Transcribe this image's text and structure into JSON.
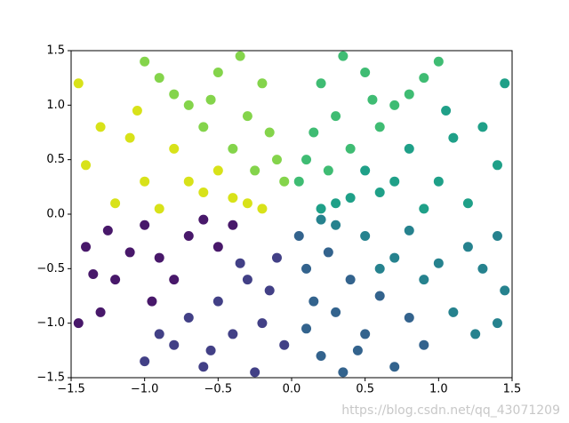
{
  "chart_data": {
    "type": "scatter",
    "xlim": [
      -1.5,
      1.5
    ],
    "ylim": [
      -1.5,
      1.5
    ],
    "xticks": [
      {
        "value": -1.5,
        "label": "−1.5"
      },
      {
        "value": -1.0,
        "label": "−1.0"
      },
      {
        "value": -0.5,
        "label": "−0.5"
      },
      {
        "value": 0,
        "label": "0.0"
      },
      0.5,
      {
        "value": 1.0,
        "label": "1.0"
      },
      1.5
    ],
    "yticks": [
      {
        "value": -1.5,
        "label": "−1.5"
      },
      {
        "value": -1.0,
        "label": "−1.0"
      },
      {
        "value": -0.5,
        "label": "−0.5"
      },
      {
        "value": 0,
        "label": "0.0"
      },
      0.5,
      {
        "value": 1.0,
        "label": "1.0"
      },
      1.5
    ],
    "series": [
      {
        "color": "#48186a",
        "x": [
          -1.4,
          -1.2,
          -1.0,
          -0.9,
          -1.3,
          -0.7,
          -1.45,
          -0.8,
          -1.1,
          -0.6,
          -1.25,
          -0.5,
          -1.35,
          -0.95,
          -0.4
        ],
        "values": [
          -0.3,
          -0.6,
          -0.1,
          -0.4,
          -0.9,
          -0.2,
          -1.0,
          -0.6,
          -0.35,
          -0.05,
          -0.15,
          -0.3,
          -0.55,
          -0.8,
          -0.1
        ]
      },
      {
        "color": "#424086",
        "x": [
          -0.5,
          -0.3,
          -0.8,
          -0.2,
          -0.6,
          -0.1,
          -1.0,
          -0.4,
          -0.25,
          -0.7,
          -0.15,
          -0.55,
          -0.35,
          -0.9,
          -0.05
        ],
        "values": [
          -0.8,
          -0.6,
          -1.2,
          -1.0,
          -1.4,
          -0.4,
          -1.35,
          -1.1,
          -1.45,
          -0.95,
          -0.7,
          -1.25,
          -0.45,
          -1.1,
          -1.2
        ]
      },
      {
        "color": "#33638d",
        "x": [
          0.1,
          0.3,
          0.2,
          0.5,
          0.05,
          0.4,
          0.7,
          0.15,
          0.6,
          0.35,
          0.9,
          0.25,
          0.45,
          0.8,
          0.1
        ],
        "values": [
          -0.5,
          -0.9,
          -1.3,
          -1.1,
          -0.2,
          -0.6,
          -1.4,
          -0.8,
          -0.75,
          -1.45,
          -1.2,
          -0.35,
          -1.25,
          -0.95,
          -1.05
        ]
      },
      {
        "color": "#26828e",
        "x": [
          0.5,
          0.9,
          1.2,
          1.4,
          0.7,
          1.1,
          0.3,
          1.3,
          0.8,
          1.45,
          1.0,
          0.6,
          1.25,
          0.2,
          1.4
        ],
        "values": [
          -0.2,
          -0.6,
          -0.3,
          -1.0,
          -0.4,
          -0.9,
          -0.1,
          -0.5,
          -0.15,
          -0.7,
          -0.45,
          -0.5,
          -1.1,
          -0.05,
          -0.2
        ]
      },
      {
        "color": "#1fa088",
        "x": [
          0.3,
          0.6,
          1.0,
          1.3,
          0.8,
          1.2,
          0.5,
          1.45,
          0.9,
          1.1,
          0.4,
          1.4,
          0.7,
          1.05,
          0.2
        ],
        "values": [
          0.1,
          0.2,
          0.3,
          0.8,
          0.6,
          0.1,
          0.4,
          1.2,
          0.05,
          0.7,
          0.15,
          0.45,
          0.3,
          0.95,
          0.05
        ]
      },
      {
        "color": "#3fbc73",
        "x": [
          0.1,
          0.3,
          0.5,
          0.2,
          0.6,
          0.4,
          0.8,
          0.05,
          1.0,
          0.35,
          0.7,
          0.15,
          0.55,
          0.9,
          0.25
        ],
        "values": [
          0.5,
          0.9,
          1.3,
          1.2,
          0.8,
          0.6,
          1.1,
          0.3,
          1.4,
          1.45,
          1.0,
          0.75,
          1.05,
          1.25,
          0.4
        ]
      },
      {
        "color": "#84d44b",
        "x": [
          -0.1,
          -0.3,
          -0.5,
          -0.2,
          -0.6,
          -0.4,
          -0.8,
          -0.05,
          -1.0,
          -0.35,
          -0.7,
          -0.15,
          -0.55,
          -0.9,
          -0.25
        ],
        "values": [
          0.5,
          0.9,
          1.3,
          1.2,
          0.8,
          0.6,
          1.1,
          0.3,
          1.4,
          1.45,
          1.0,
          0.75,
          1.05,
          1.25,
          0.4
        ]
      },
      {
        "color": "#d8e219",
        "x": [
          -0.3,
          -0.6,
          -1.0,
          -1.3,
          -0.8,
          -1.2,
          -0.5,
          -1.45,
          -0.9,
          -1.1,
          -0.4,
          -1.4,
          -0.7,
          -1.05,
          -0.2
        ],
        "values": [
          0.1,
          0.2,
          0.3,
          0.8,
          0.6,
          0.1,
          0.4,
          1.2,
          0.05,
          0.7,
          0.15,
          0.45,
          0.3,
          0.95,
          0.05
        ]
      }
    ]
  },
  "watermark": "https://blog.csdn.net/qq_43071209"
}
